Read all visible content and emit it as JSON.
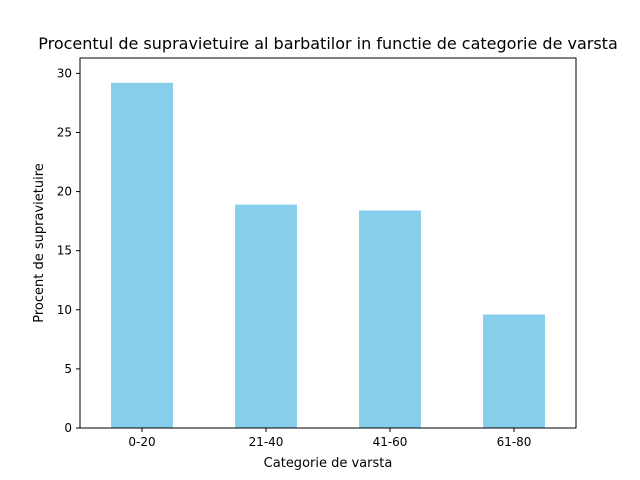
{
  "chart_data": {
    "type": "bar",
    "title": "Procentul de supravietuire al barbatilor in functie de categorie de varsta",
    "xlabel": "Categorie de varsta",
    "ylabel": "Procent de supravietuire",
    "categories": [
      "0-20",
      "21-40",
      "41-60",
      "61-80"
    ],
    "values": [
      29.2,
      18.9,
      18.4,
      9.6
    ],
    "ylim": [
      0,
      31.3
    ],
    "yticks": [
      0,
      5,
      10,
      15,
      20,
      25,
      30
    ],
    "grid": false,
    "legend": "none",
    "bar_color": "#87ceeb"
  }
}
